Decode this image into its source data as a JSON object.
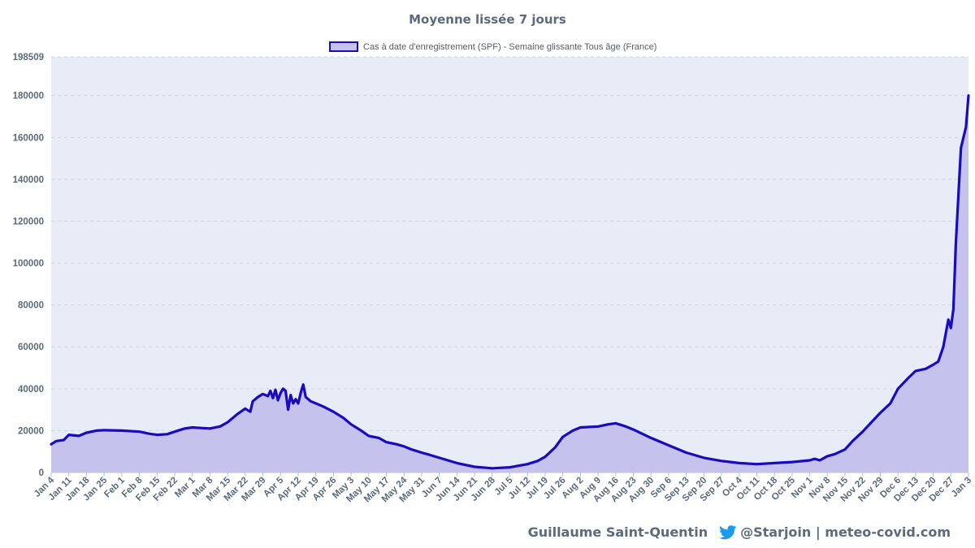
{
  "chart_data": {
    "type": "area",
    "title": "Moyenne lissée 7 jours",
    "xlabel": "",
    "ylabel": "",
    "ylim": [
      0,
      198509
    ],
    "yticks": [
      0,
      20000,
      40000,
      60000,
      80000,
      100000,
      120000,
      140000,
      160000,
      180000,
      198509
    ],
    "grid": true,
    "legend_position": "top-center",
    "x_labels": [
      "Jan 4",
      "Jan 11",
      "Jan 18",
      "Jan 25",
      "Feb 1",
      "Feb 8",
      "Feb 15",
      "Feb 22",
      "Mar 1",
      "Mar 8",
      "Mar 15",
      "Mar 22",
      "Mar 29",
      "Apr 5",
      "Apr 12",
      "Apr 19",
      "Apr 26",
      "May 3",
      "May 10",
      "May 17",
      "May 24",
      "May 31",
      "Jun 7",
      "Jun 14",
      "Jun 21",
      "Jun 28",
      "Jul 5",
      "Jul 12",
      "Jul 19",
      "Jul 26",
      "Aug 2",
      "Aug 9",
      "Aug 16",
      "Aug 23",
      "Aug 30",
      "Sep 6",
      "Sep 13",
      "Sep 20",
      "Sep 27",
      "Oct 4",
      "Oct 11",
      "Oct 18",
      "Oct 25",
      "Nov 1",
      "Nov 8",
      "Nov 15",
      "Nov 22",
      "Nov 29",
      "Dec 6",
      "Dec 13",
      "Dec 20",
      "Dec 27",
      "Jan 3"
    ],
    "series": [
      {
        "name": "Cas à date d'enregistrement (SPF) - Semaine glissante Tous âge (France)",
        "line_color": "#1a0bbf",
        "fill_color": "#c6c2ee",
        "x": [
          "2021-01-04",
          "2021-01-06",
          "2021-01-09",
          "2021-01-11",
          "2021-01-15",
          "2021-01-18",
          "2021-01-22",
          "2021-01-25",
          "2021-02-01",
          "2021-02-08",
          "2021-02-12",
          "2021-02-15",
          "2021-02-19",
          "2021-02-22",
          "2021-02-26",
          "2021-03-01",
          "2021-03-05",
          "2021-03-08",
          "2021-03-12",
          "2021-03-15",
          "2021-03-19",
          "2021-03-22",
          "2021-03-24",
          "2021-03-25",
          "2021-03-27",
          "2021-03-29",
          "2021-03-31",
          "2021-04-01",
          "2021-04-02",
          "2021-04-03",
          "2021-04-04",
          "2021-04-05",
          "2021-04-06",
          "2021-04-07",
          "2021-04-08",
          "2021-04-09",
          "2021-04-10",
          "2021-04-11",
          "2021-04-12",
          "2021-04-13",
          "2021-04-14",
          "2021-04-15",
          "2021-04-17",
          "2021-04-19",
          "2021-04-22",
          "2021-04-26",
          "2021-04-30",
          "2021-05-03",
          "2021-05-07",
          "2021-05-10",
          "2021-05-14",
          "2021-05-17",
          "2021-05-21",
          "2021-05-24",
          "2021-05-27",
          "2021-05-31",
          "2021-06-03",
          "2021-06-07",
          "2021-06-14",
          "2021-06-21",
          "2021-06-28",
          "2021-07-05",
          "2021-07-12",
          "2021-07-16",
          "2021-07-19",
          "2021-07-23",
          "2021-07-26",
          "2021-07-30",
          "2021-08-02",
          "2021-08-09",
          "2021-08-13",
          "2021-08-16",
          "2021-08-20",
          "2021-08-23",
          "2021-08-30",
          "2021-09-06",
          "2021-09-13",
          "2021-09-20",
          "2021-09-27",
          "2021-10-04",
          "2021-10-11",
          "2021-10-18",
          "2021-10-25",
          "2021-11-01",
          "2021-11-03",
          "2021-11-05",
          "2021-11-08",
          "2021-11-11",
          "2021-11-15",
          "2021-11-18",
          "2021-11-22",
          "2021-11-29",
          "2021-12-03",
          "2021-12-06",
          "2021-12-10",
          "2021-12-13",
          "2021-12-17",
          "2021-12-20",
          "2021-12-22",
          "2021-12-24",
          "2021-12-26",
          "2021-12-27",
          "2021-12-28",
          "2021-12-29",
          "2021-12-31",
          "2022-01-02",
          "2022-01-03"
        ],
        "values": [
          13500,
          15000,
          15500,
          18000,
          17500,
          19000,
          20000,
          20200,
          20000,
          19500,
          18500,
          18000,
          18300,
          19500,
          21000,
          21500,
          21200,
          21000,
          22000,
          24000,
          28000,
          30500,
          29000,
          34000,
          36000,
          37500,
          36500,
          39000,
          35500,
          39500,
          34500,
          38000,
          40000,
          39000,
          30000,
          37000,
          33000,
          35000,
          33000,
          38000,
          42000,
          36000,
          34000,
          33000,
          31500,
          29000,
          26000,
          23000,
          20000,
          17500,
          16500,
          14500,
          13500,
          12500,
          11000,
          9500,
          8500,
          7000,
          4500,
          2700,
          2000,
          2500,
          4000,
          5500,
          7500,
          12000,
          17000,
          20000,
          21500,
          22000,
          23000,
          23500,
          22000,
          20500,
          16500,
          13000,
          9500,
          7000,
          5500,
          4500,
          4000,
          4500,
          5000,
          5800,
          6500,
          5800,
          7800,
          8800,
          11000,
          15000,
          19500,
          28500,
          33000,
          40000,
          45000,
          48500,
          49500,
          51500,
          53000,
          60000,
          73000,
          69000,
          78000,
          110000,
          155000,
          165000,
          180000
        ]
      }
    ],
    "footer": {
      "author": "Guillaume Saint-Quentin",
      "handle": "@Starjoin | meteo-covid.com"
    }
  }
}
